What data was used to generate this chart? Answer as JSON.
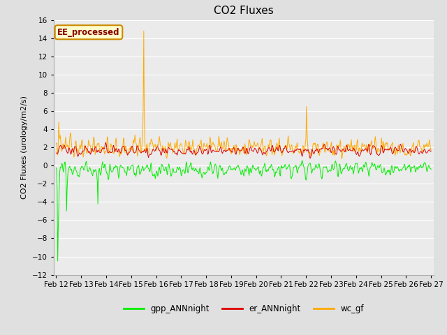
{
  "title": "CO2 Fluxes",
  "ylabel": "CO2 Fluxes (urology/m2/s)",
  "xlabel": "",
  "ylim": [
    -12,
    16
  ],
  "yticks": [
    -12,
    -10,
    -8,
    -6,
    -4,
    -2,
    0,
    2,
    4,
    6,
    8,
    10,
    12,
    14,
    16
  ],
  "start_day": 12,
  "end_day": 27,
  "n_points": 720,
  "gpp_color": "#00ee00",
  "er_color": "#dd0000",
  "wc_color": "#ffaa00",
  "background_color": "#e0e0e0",
  "plot_bg_color": "#ebebeb",
  "annotation_text": "EE_processed",
  "annotation_bg": "#ffffcc",
  "annotation_border": "#cc8800",
  "annotation_text_color": "#880000",
  "legend_labels": [
    "gpp_ANNnight",
    "er_ANNnight",
    "wc_gf"
  ],
  "title_fontsize": 11,
  "axis_fontsize": 8,
  "tick_fontsize": 7.5
}
